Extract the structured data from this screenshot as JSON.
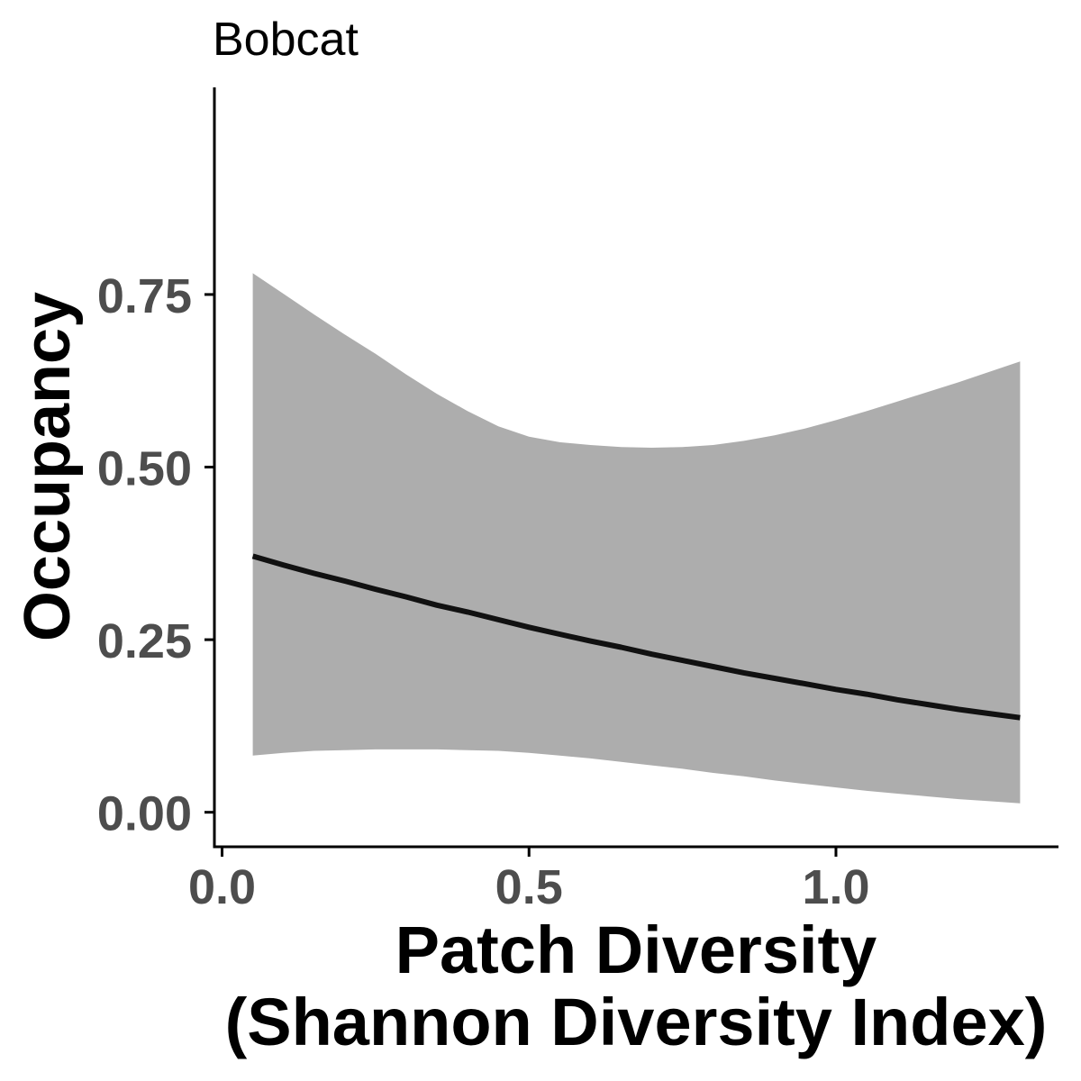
{
  "chart_data": {
    "type": "line",
    "title": "Bobcat",
    "xlabel": "Patch Diversity\n(Shannon Diversity Index)",
    "ylabel": "Occupancy",
    "xlim": [
      -0.0125,
      1.3625
    ],
    "ylim": [
      -0.05,
      1.05
    ],
    "xticks": [
      0.0,
      0.5,
      1.0
    ],
    "xtick_labels": [
      "0.0",
      "0.5",
      "1.0"
    ],
    "yticks": [
      0.0,
      0.25,
      0.5,
      0.75
    ],
    "ytick_labels": [
      "0.00",
      "0.25",
      "0.50",
      "0.75"
    ],
    "grid": false,
    "series": [
      {
        "x": [
          0.05,
          0.1,
          0.15,
          0.2,
          0.25,
          0.3,
          0.35,
          0.4,
          0.45,
          0.5,
          0.55,
          0.6,
          0.65,
          0.7,
          0.75,
          0.8,
          0.85,
          0.9,
          0.95,
          1.0,
          1.05,
          1.1,
          1.15,
          1.2,
          1.25,
          1.3
        ],
        "y": [
          0.371,
          0.358,
          0.346,
          0.335,
          0.323,
          0.312,
          0.3,
          0.29,
          0.279,
          0.268,
          0.258,
          0.248,
          0.239,
          0.229,
          0.22,
          0.211,
          0.202,
          0.194,
          0.186,
          0.178,
          0.171,
          0.163,
          0.156,
          0.149,
          0.143,
          0.137
        ],
        "lower": [
          0.082,
          0.086,
          0.089,
          0.09,
          0.091,
          0.091,
          0.091,
          0.09,
          0.089,
          0.086,
          0.082,
          0.078,
          0.073,
          0.068,
          0.063,
          0.057,
          0.052,
          0.046,
          0.041,
          0.036,
          0.031,
          0.027,
          0.023,
          0.019,
          0.016,
          0.013
        ],
        "upper": [
          0.781,
          0.751,
          0.721,
          0.692,
          0.664,
          0.634,
          0.606,
          0.581,
          0.559,
          0.544,
          0.536,
          0.532,
          0.529,
          0.528,
          0.529,
          0.532,
          0.538,
          0.546,
          0.556,
          0.568,
          0.581,
          0.595,
          0.609,
          0.623,
          0.638,
          0.653
        ]
      }
    ],
    "colors": {
      "line": "#111111",
      "ribbon": "#ADADAD",
      "axis": "#000000",
      "tick_label": "#4D4D4D"
    }
  }
}
